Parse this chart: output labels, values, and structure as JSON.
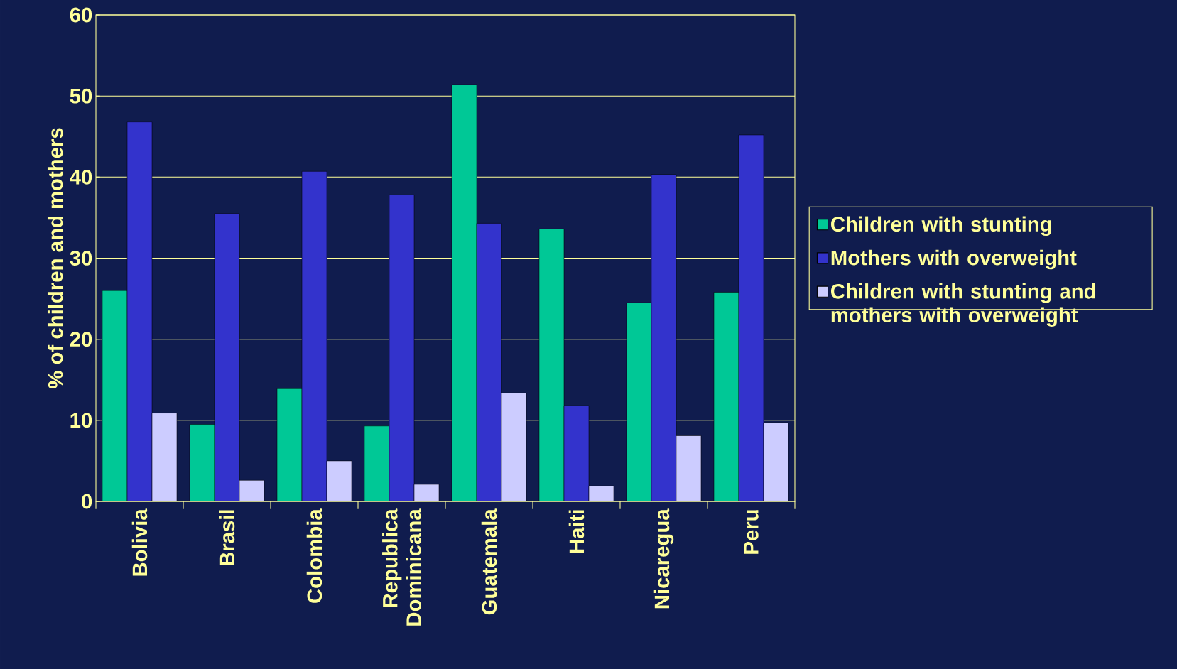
{
  "chart_data": {
    "type": "bar",
    "ylabel": "% of children and mothers",
    "categories": [
      "Bolivia",
      "Brasil",
      "Colombia",
      "Republica Dominicana",
      "Guatemala",
      "Haiti",
      "Nicaregua",
      "Peru"
    ],
    "series": [
      {
        "name": "Children with stunting",
        "color": "#00c896",
        "values": [
          26.0,
          9.5,
          13.9,
          9.3,
          51.4,
          33.6,
          24.5,
          25.8
        ]
      },
      {
        "name": "Mothers with overweight",
        "color": "#3333cc",
        "values": [
          46.8,
          35.5,
          40.7,
          37.8,
          34.3,
          11.8,
          40.3,
          45.2
        ]
      },
      {
        "name": "Children with stunting and mothers with overweight",
        "color": "#ccccff",
        "values": [
          10.9,
          2.6,
          5.0,
          2.1,
          13.4,
          1.9,
          8.1,
          9.7
        ]
      }
    ],
    "ylim": [
      0,
      60
    ],
    "yticks": [
      0,
      10,
      20,
      30,
      40,
      50,
      60
    ],
    "grid": "y",
    "legend": "right"
  }
}
